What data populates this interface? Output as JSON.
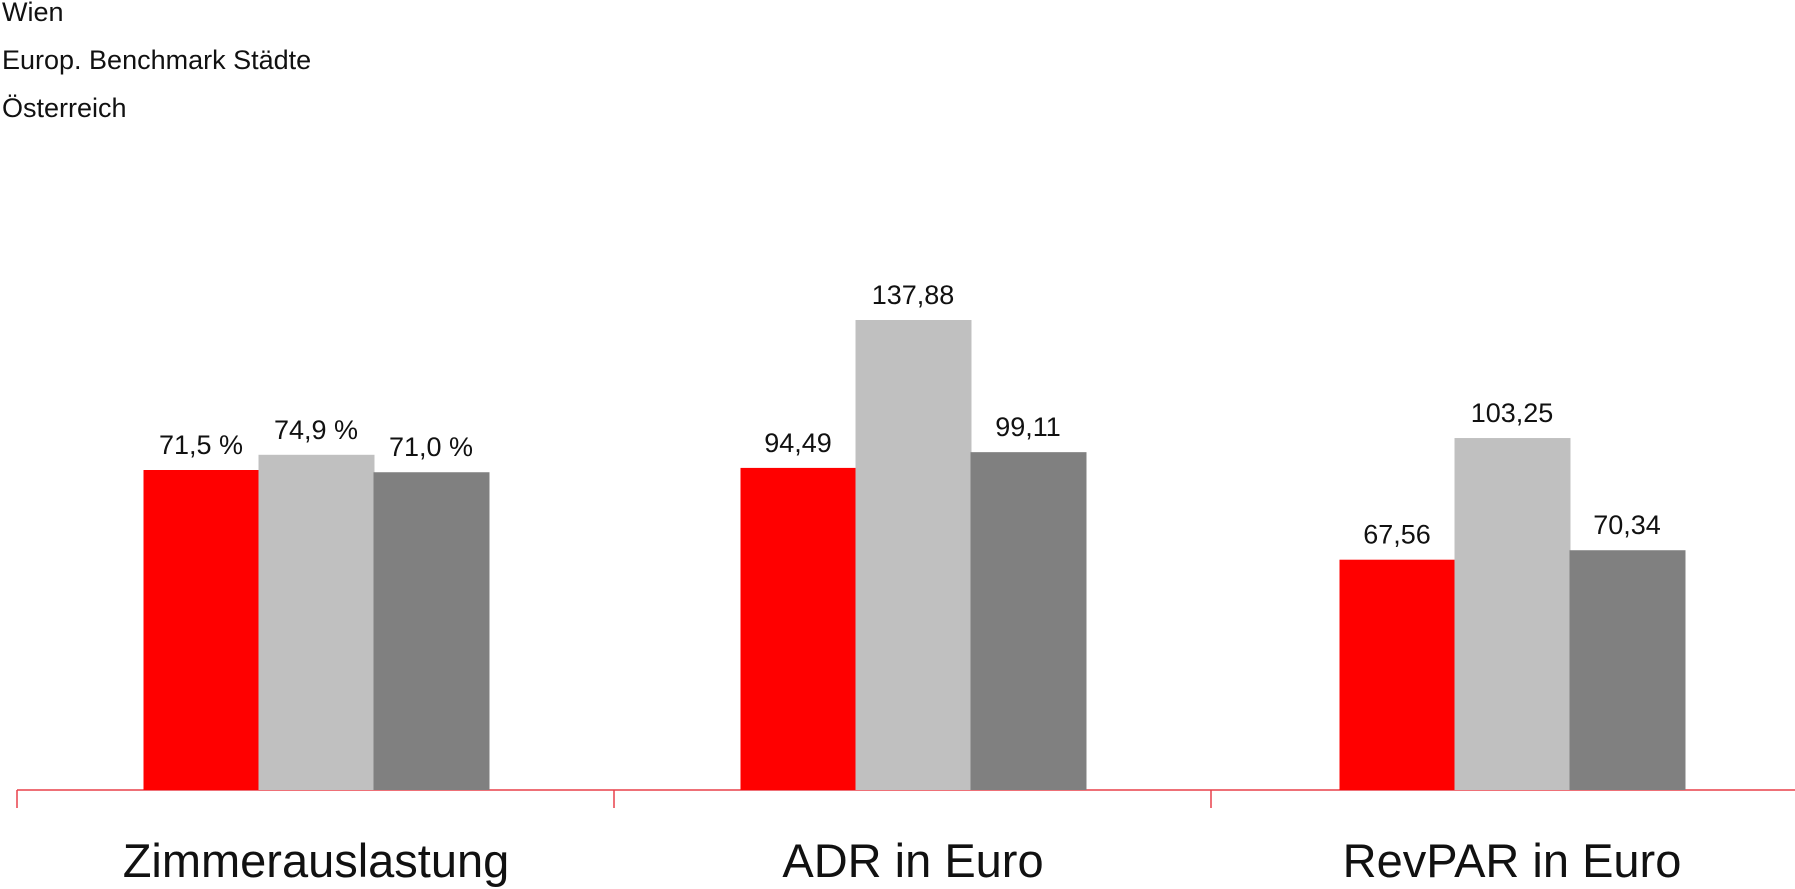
{
  "chart_data": {
    "type": "bar",
    "title": "",
    "xlabel": "",
    "ylabel": "",
    "categories": [
      "Zimmerauslastung",
      "ADR in Euro",
      "RevPAR in Euro"
    ],
    "series": [
      {
        "name": "Wien",
        "color": "#ff0000",
        "values": [
          71.5,
          94.49,
          67.56
        ],
        "labels": [
          "71,5 %",
          "94,49",
          "67,56"
        ]
      },
      {
        "name": "Europ. Benchmark Städte",
        "color": "#c0c0c0",
        "values": [
          74.9,
          137.88,
          103.25
        ],
        "labels": [
          "74,9 %",
          "137,88",
          "103,25"
        ]
      },
      {
        "name": "Österreich",
        "color": "#808080",
        "values": [
          71.0,
          99.11,
          70.34
        ],
        "labels": [
          "71,0 %",
          "99,11",
          "70,34"
        ]
      }
    ],
    "axis_color": "#e8404a",
    "legend_position": "top-left",
    "grid": false
  }
}
